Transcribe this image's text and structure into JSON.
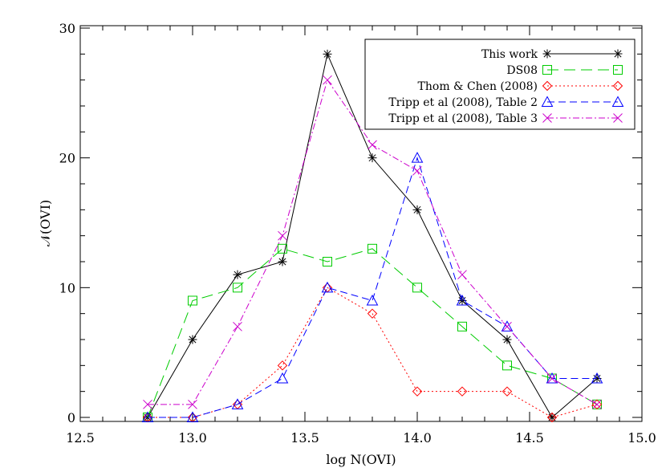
{
  "chart_data": {
    "type": "line",
    "title": "",
    "xlabel": "log N(OVI)",
    "ylabel": "𝒩(OVI)",
    "xlim": [
      12.5,
      15.0
    ],
    "ylim": [
      0,
      30
    ],
    "x_ticks": [
      "12.5",
      "13.0",
      "13.5",
      "14.0",
      "14.5",
      "15.0"
    ],
    "y_ticks": [
      "0",
      "10",
      "20",
      "30"
    ],
    "grid": false,
    "legend_position": "top-right",
    "series": [
      {
        "name": "This work",
        "color": "#000000",
        "dash": "solid",
        "marker": "asterisk",
        "x": [
          12.8,
          13.0,
          13.2,
          13.4,
          13.6,
          13.8,
          14.0,
          14.2,
          14.4,
          14.6,
          14.8
        ],
        "y": [
          0,
          6,
          11,
          12,
          28,
          20,
          16,
          9,
          6,
          0,
          3
        ]
      },
      {
        "name": "DS08",
        "color": "#00cc00",
        "dash": "longdash",
        "marker": "square",
        "x": [
          12.8,
          13.0,
          13.2,
          13.4,
          13.6,
          13.8,
          14.0,
          14.2,
          14.4,
          14.6,
          14.8
        ],
        "y": [
          0,
          9,
          10,
          13,
          12,
          13,
          10,
          7,
          4,
          3,
          1
        ]
      },
      {
        "name": "Thom & Chen (2008)",
        "color": "#ff0000",
        "dash": "dotted",
        "marker": "diamond",
        "x": [
          12.8,
          13.0,
          13.2,
          13.4,
          13.6,
          13.8,
          14.0,
          14.2,
          14.4,
          14.6,
          14.8
        ],
        "y": [
          0,
          0,
          1,
          4,
          10,
          8,
          2,
          2,
          2,
          0,
          1
        ]
      },
      {
        "name": "Tripp et al (2008), Table 2",
        "color": "#0000ff",
        "dash": "dashed",
        "marker": "triangle",
        "x": [
          12.8,
          13.0,
          13.2,
          13.4,
          13.6,
          13.8,
          14.0,
          14.2,
          14.4,
          14.6,
          14.8
        ],
        "y": [
          0,
          0,
          1,
          3,
          10,
          9,
          20,
          9,
          7,
          3,
          3
        ]
      },
      {
        "name": "Tripp et al (2008), Table 3",
        "color": "#cc00cc",
        "dash": "dashdot",
        "marker": "x",
        "x": [
          12.8,
          13.0,
          13.2,
          13.4,
          13.6,
          13.8,
          14.0,
          14.2,
          14.4,
          14.6,
          14.8
        ],
        "y": [
          1,
          1,
          7,
          14,
          26,
          21,
          19,
          11,
          7,
          3,
          1
        ]
      }
    ]
  }
}
